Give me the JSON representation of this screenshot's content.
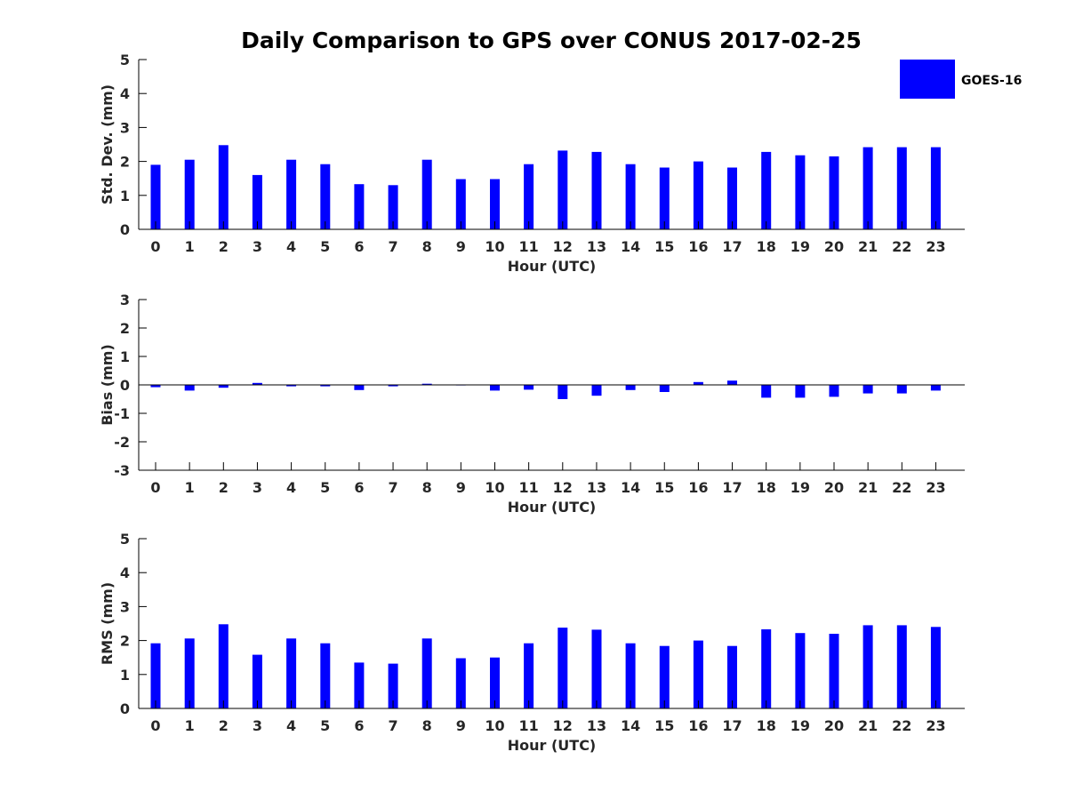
{
  "figure": {
    "title": "Daily Comparison to GPS over CONUS 2017-02-25",
    "legend": {
      "label": "GOES-16",
      "color": "#0000ff",
      "placement": "top-right"
    }
  },
  "chart_data": [
    {
      "type": "bar",
      "xlabel": "Hour (UTC)",
      "ylabel": "Std. Dev. (mm)",
      "ylim": [
        0,
        5
      ],
      "yticks": [
        "0",
        "1",
        "2",
        "3",
        "4",
        "5"
      ],
      "categories": [
        "0",
        "1",
        "2",
        "3",
        "4",
        "5",
        "6",
        "7",
        "8",
        "9",
        "10",
        "11",
        "12",
        "13",
        "14",
        "15",
        "16",
        "17",
        "18",
        "19",
        "20",
        "21",
        "22",
        "23"
      ],
      "series": [
        {
          "name": "GOES-16",
          "color": "#0000ff",
          "values": [
            1.9,
            2.05,
            2.48,
            1.6,
            2.05,
            1.92,
            1.33,
            1.3,
            2.05,
            1.48,
            1.48,
            1.92,
            2.32,
            2.28,
            1.92,
            1.82,
            2.0,
            1.82,
            2.28,
            2.18,
            2.15,
            2.42,
            2.42,
            2.42
          ]
        }
      ]
    },
    {
      "type": "bar",
      "xlabel": "Hour (UTC)",
      "ylabel": "Bias (mm)",
      "ylim": [
        -3,
        3
      ],
      "yticks": [
        "-3",
        "-2",
        "-1",
        "0",
        "1",
        "2",
        "3"
      ],
      "zero_line": true,
      "categories": [
        "0",
        "1",
        "2",
        "3",
        "4",
        "5",
        "6",
        "7",
        "8",
        "9",
        "10",
        "11",
        "12",
        "13",
        "14",
        "15",
        "16",
        "17",
        "18",
        "19",
        "20",
        "21",
        "22",
        "23"
      ],
      "series": [
        {
          "name": "GOES-16",
          "color": "#0000ff",
          "values": [
            -0.08,
            -0.2,
            -0.1,
            0.07,
            -0.05,
            -0.05,
            -0.18,
            -0.05,
            0.04,
            -0.02,
            -0.2,
            -0.17,
            -0.5,
            -0.38,
            -0.18,
            -0.25,
            0.1,
            0.15,
            -0.45,
            -0.45,
            -0.42,
            -0.3,
            -0.3,
            -0.2
          ]
        }
      ]
    },
    {
      "type": "bar",
      "xlabel": "Hour (UTC)",
      "ylabel": "RMS (mm)",
      "ylim": [
        0,
        5
      ],
      "yticks": [
        "0",
        "1",
        "2",
        "3",
        "4",
        "5"
      ],
      "categories": [
        "0",
        "1",
        "2",
        "3",
        "4",
        "5",
        "6",
        "7",
        "8",
        "9",
        "10",
        "11",
        "12",
        "13",
        "14",
        "15",
        "16",
        "17",
        "18",
        "19",
        "20",
        "21",
        "22",
        "23"
      ],
      "series": [
        {
          "name": "GOES-16",
          "color": "#0000ff",
          "values": [
            1.92,
            2.06,
            2.48,
            1.58,
            2.06,
            1.92,
            1.35,
            1.32,
            2.06,
            1.48,
            1.5,
            1.92,
            2.38,
            2.32,
            1.92,
            1.84,
            2.0,
            1.84,
            2.33,
            2.22,
            2.2,
            2.45,
            2.45,
            2.4
          ]
        }
      ]
    }
  ]
}
